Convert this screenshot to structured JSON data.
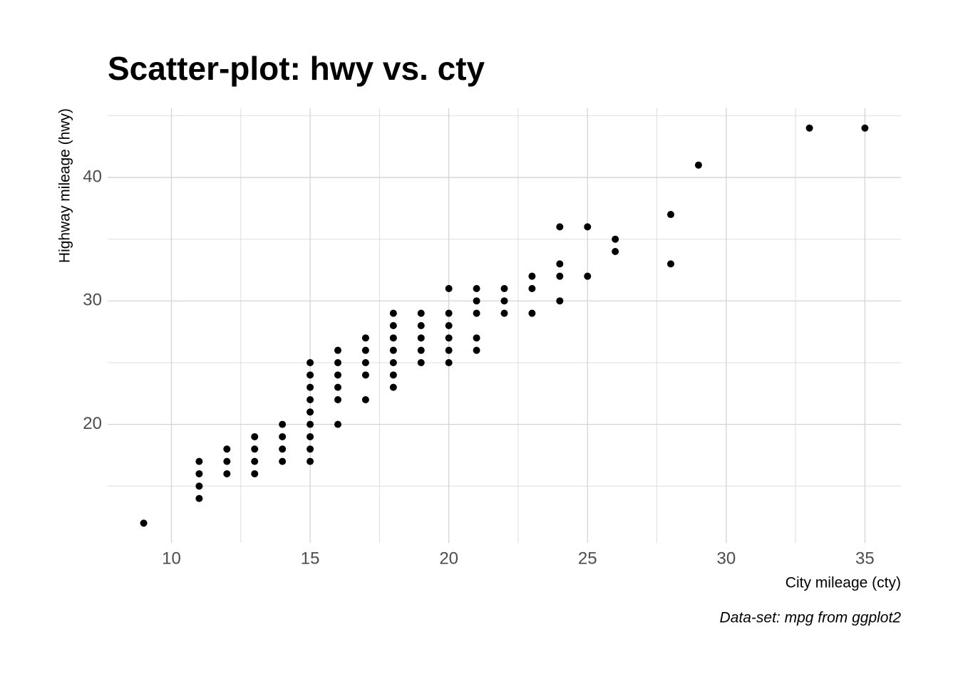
{
  "chart_data": {
    "type": "scatter",
    "title": "Scatter-plot: hwy vs. cty",
    "x_label": "City mileage (cty)",
    "y_label": "Highway mileage (hwy)",
    "caption": "Data-set: mpg from ggplot2",
    "color": "#000000",
    "x": [
      9,
      11,
      11,
      11,
      11,
      12,
      12,
      12,
      13,
      13,
      13,
      13,
      14,
      14,
      14,
      14,
      15,
      15,
      15,
      15,
      15,
      15,
      15,
      15,
      15,
      16,
      16,
      16,
      16,
      16,
      16,
      17,
      17,
      17,
      17,
      17,
      18,
      18,
      18,
      18,
      18,
      18,
      18,
      19,
      19,
      19,
      19,
      19,
      20,
      20,
      20,
      20,
      20,
      20,
      21,
      21,
      21,
      21,
      21,
      22,
      22,
      22,
      23,
      23,
      23,
      24,
      24,
      24,
      24,
      25,
      25,
      26,
      26,
      28,
      28,
      29,
      33,
      35
    ],
    "y": [
      12,
      14,
      15,
      16,
      17,
      16,
      17,
      18,
      16,
      17,
      18,
      19,
      17,
      18,
      19,
      20,
      17,
      18,
      19,
      20,
      21,
      22,
      23,
      24,
      25,
      20,
      22,
      23,
      24,
      25,
      26,
      22,
      24,
      25,
      26,
      27,
      23,
      24,
      25,
      26,
      27,
      28,
      29,
      25,
      26,
      27,
      28,
      29,
      25,
      26,
      27,
      28,
      29,
      31,
      26,
      27,
      29,
      30,
      31,
      29,
      30,
      31,
      29,
      31,
      32,
      30,
      32,
      33,
      36,
      32,
      36,
      34,
      35,
      33,
      37,
      41,
      44,
      44
    ],
    "xlim": [
      7.7,
      36.3
    ],
    "ylim": [
      10.4,
      45.6
    ],
    "xticks": [
      10,
      15,
      20,
      25,
      30,
      35
    ],
    "yticks": [
      20,
      30,
      40
    ],
    "xminor": [
      12.5,
      17.5,
      22.5,
      27.5,
      32.5
    ],
    "yminor": [
      15,
      25,
      35,
      45
    ],
    "grid": true
  }
}
